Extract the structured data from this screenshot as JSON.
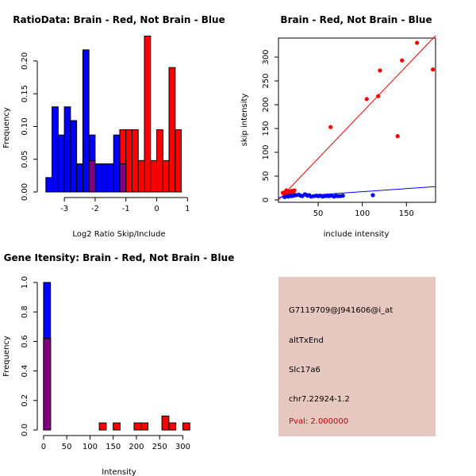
{
  "colors": {
    "red": "#ff0000",
    "blue": "#0000ff",
    "purple": "#800080",
    "panel": "#e6c8c0",
    "pval": "#cc0000"
  },
  "chart_data": [
    {
      "type": "histogram",
      "title": "RatioData: Brain - Red, Not Brain - Blue",
      "xlabel": "Log2 Ratio Skip/Include",
      "ylabel": "Frequency",
      "xlim": [
        -3.75,
        1.3
      ],
      "ylim": [
        0,
        0.235
      ],
      "xticks": [
        "-3",
        "-2",
        "-1",
        "0",
        "1"
      ],
      "xtick_values": [
        -3,
        -2,
        -1,
        0,
        1
      ],
      "yticks": [
        "0.00",
        "0.05",
        "0.10",
        "0.15",
        "0.20"
      ],
      "ytick_values": [
        0,
        0.05,
        0.1,
        0.15,
        0.2
      ],
      "series": [
        {
          "name": "Not Brain",
          "color": "blue",
          "bins": [
            [
              -3.6,
              -3.4,
              0.022
            ],
            [
              -3.4,
              -3.2,
              0.13
            ],
            [
              -3.2,
              -3.0,
              0.087
            ],
            [
              -3.0,
              -2.8,
              0.13
            ],
            [
              -2.8,
              -2.6,
              0.109
            ],
            [
              -2.6,
              -2.4,
              0.043
            ],
            [
              -2.4,
              -2.2,
              0.217
            ],
            [
              -2.2,
              -2.0,
              0.087
            ],
            [
              -2.0,
              -1.8,
              0.043
            ],
            [
              -1.8,
              -1.6,
              0.043
            ],
            [
              -1.6,
              -1.4,
              0.043
            ],
            [
              -1.4,
              -1.2,
              0.087
            ],
            [
              -1.2,
              -1.0,
              0.043
            ]
          ]
        },
        {
          "name": "Brain",
          "color": "red",
          "bins": [
            [
              -2.2,
              -2.0,
              0.048
            ],
            [
              -1.2,
              -1.0,
              0.095
            ],
            [
              -1.0,
              -0.8,
              0.095
            ],
            [
              -0.8,
              -0.6,
              0.095
            ],
            [
              -0.6,
              -0.4,
              0.048
            ],
            [
              -0.4,
              -0.2,
              0.238
            ],
            [
              -0.2,
              0.0,
              0.048
            ],
            [
              0.0,
              0.2,
              0.095
            ],
            [
              0.2,
              0.4,
              0.048
            ],
            [
              0.4,
              0.6,
              0.19
            ],
            [
              0.6,
              0.8,
              0.095
            ]
          ]
        }
      ],
      "overlap_color": "purple"
    },
    {
      "type": "scatter",
      "title": "Brain - Red, Not Brain - Blue",
      "xlabel": "include intensity",
      "ylabel": "skip intensity",
      "xlim": [
        5,
        183
      ],
      "ylim": [
        -5,
        340
      ],
      "xticks": [
        "50",
        "100",
        "150"
      ],
      "xtick_values": [
        50,
        100,
        150
      ],
      "yticks": [
        "0",
        "50",
        "100",
        "150",
        "200",
        "250",
        "300"
      ],
      "ytick_values": [
        0,
        50,
        100,
        150,
        200,
        250,
        300
      ],
      "series": [
        {
          "name": "Brain",
          "color": "red",
          "points": [
            [
              10,
              15
            ],
            [
              12,
              12
            ],
            [
              13,
              17
            ],
            [
              14,
              20
            ],
            [
              15,
              14
            ],
            [
              16,
              13
            ],
            [
              17,
              18
            ],
            [
              18,
              16
            ],
            [
              19,
              15
            ],
            [
              20,
              19
            ],
            [
              21,
              17
            ],
            [
              22,
              14
            ],
            [
              23,
              20
            ],
            [
              64,
              153
            ],
            [
              105,
              212
            ],
            [
              118,
              218
            ],
            [
              120,
              272
            ],
            [
              140,
              134
            ],
            [
              145,
              293
            ],
            [
              162,
              330
            ],
            [
              180,
              274
            ]
          ],
          "fit": [
            [
              5,
              0
            ],
            [
              183,
              345
            ]
          ]
        },
        {
          "name": "Not Brain",
          "color": "blue",
          "points": [
            [
              12,
              6
            ],
            [
              14,
              8
            ],
            [
              16,
              7
            ],
            [
              18,
              9
            ],
            [
              20,
              8
            ],
            [
              22,
              9
            ],
            [
              25,
              10
            ],
            [
              28,
              11
            ],
            [
              30,
              9
            ],
            [
              32,
              8
            ],
            [
              35,
              12
            ],
            [
              37,
              10
            ],
            [
              38,
              9
            ],
            [
              40,
              10
            ],
            [
              42,
              7
            ],
            [
              45,
              8
            ],
            [
              48,
              9
            ],
            [
              50,
              8
            ],
            [
              52,
              9
            ],
            [
              55,
              7
            ],
            [
              58,
              8
            ],
            [
              60,
              9
            ],
            [
              62,
              8
            ],
            [
              65,
              9
            ],
            [
              68,
              7
            ],
            [
              70,
              9
            ],
            [
              72,
              8
            ],
            [
              75,
              8
            ],
            [
              78,
              9
            ],
            [
              112,
              10
            ]
          ],
          "fit": [
            [
              5,
              5
            ],
            [
              183,
              28
            ]
          ]
        }
      ]
    },
    {
      "type": "histogram",
      "title": "Gene Itensity: Brain - Red, Not Brain - Blue",
      "xlabel": "Intensity",
      "ylabel": "Frequency",
      "xlim": [
        -5,
        330
      ],
      "ylim": [
        0,
        1
      ],
      "xticks": [
        "0",
        "50",
        "100",
        "150",
        "200",
        "250",
        "300"
      ],
      "xtick_values": [
        0,
        50,
        100,
        150,
        200,
        250,
        300
      ],
      "yticks": [
        "0.0",
        "0.2",
        "0.4",
        "0.6",
        "0.8",
        "1.0"
      ],
      "ytick_values": [
        0,
        0.2,
        0.4,
        0.6,
        0.8,
        1.0
      ],
      "series": [
        {
          "name": "Not Brain",
          "color": "blue",
          "bins": [
            [
              0,
              15,
              1.0
            ]
          ]
        },
        {
          "name": "Brain",
          "color": "red",
          "bins": [
            [
              0,
              15,
              0.62
            ],
            [
              120,
              135,
              0.048
            ],
            [
              150,
              165,
              0.048
            ],
            [
              195,
              210,
              0.048
            ],
            [
              210,
              225,
              0.048
            ],
            [
              255,
              270,
              0.095
            ],
            [
              270,
              285,
              0.048
            ],
            [
              300,
              315,
              0.048
            ]
          ]
        }
      ],
      "overlap_color": "purple"
    }
  ],
  "info_panel": {
    "probe": "G7119709@J941606@i_at",
    "event": "altTxEnd",
    "gene": "Slc17a6",
    "location": "chr7.22924-1.2",
    "pval": "Pval: 2.000000"
  }
}
